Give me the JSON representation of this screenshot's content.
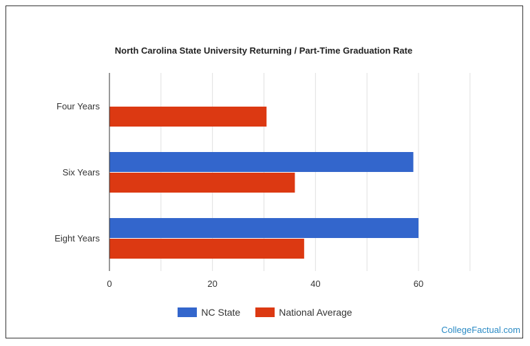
{
  "chart_data": {
    "type": "bar",
    "orientation": "horizontal",
    "title": "North Carolina State University Returning / Part-Time Graduation Rate",
    "categories": [
      "Four Years",
      "Six Years",
      "Eight Years"
    ],
    "series": [
      {
        "name": "NC State",
        "color": "#3366cc",
        "values": [
          null,
          59,
          60
        ]
      },
      {
        "name": "National Average",
        "color": "#dc3912",
        "values": [
          30.5,
          36,
          37.8
        ]
      }
    ],
    "xlim": [
      0,
      60
    ],
    "x_ticks": [
      "0",
      "20",
      "40",
      "60"
    ],
    "grid": true,
    "legend_position": "bottom"
  },
  "watermark": "CollegeFactual.com"
}
